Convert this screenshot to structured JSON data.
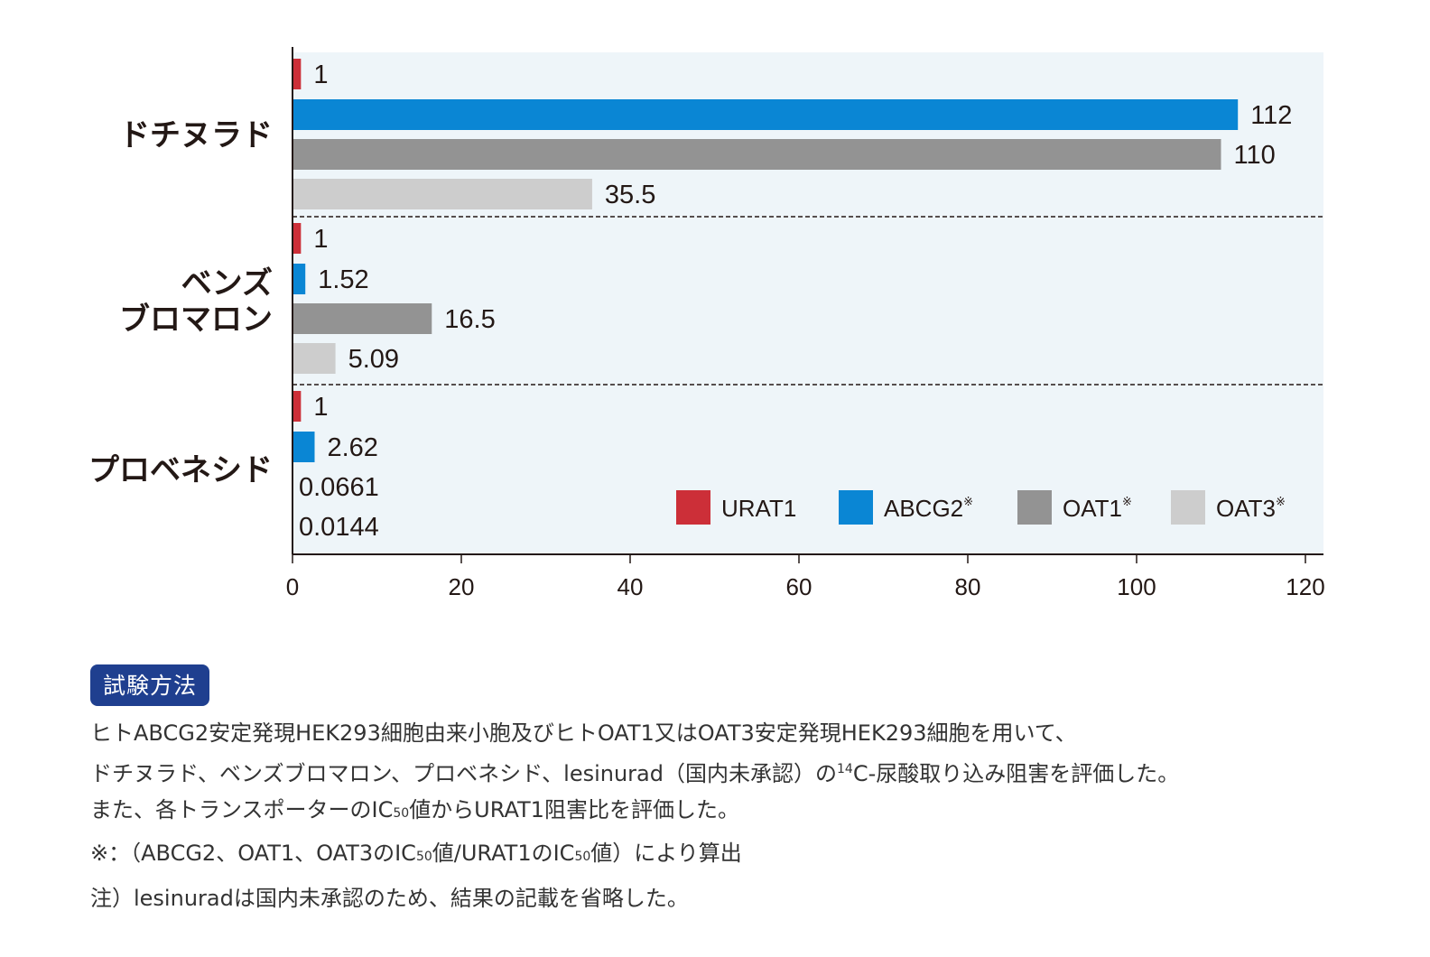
{
  "chart_data": {
    "type": "bar",
    "orientation": "horizontal",
    "groups": [
      {
        "label_lines": [
          "ドチヌラド"
        ],
        "values": [
          1,
          112,
          110,
          35.5
        ],
        "value_labels": [
          "1",
          "112",
          "110",
          "35.5"
        ]
      },
      {
        "label_lines": [
          "ベンズ",
          "ブロマロン"
        ],
        "values": [
          1,
          1.52,
          16.5,
          5.09
        ],
        "value_labels": [
          "1",
          "1.52",
          "16.5",
          "5.09"
        ]
      },
      {
        "label_lines": [
          "プロベネシド"
        ],
        "values": [
          1,
          2.62,
          0.0661,
          0.0144
        ],
        "value_labels": [
          "1",
          "2.62",
          "0.0661",
          "0.0144"
        ]
      }
    ],
    "series": [
      {
        "name": "URAT1",
        "marker": "",
        "color": "#cc2f38"
      },
      {
        "name": "ABCG2",
        "marker": "※",
        "color": "#0a86d4"
      },
      {
        "name": "OAT1",
        "marker": "※",
        "color": "#939393"
      },
      {
        "name": "OAT3",
        "marker": "※",
        "color": "#cdcdcd"
      }
    ],
    "xlim": [
      0,
      120
    ],
    "xticks": [
      0,
      20,
      40,
      60,
      80,
      100,
      120
    ],
    "xlabel": "",
    "ylabel": "",
    "background": "#eef5f9",
    "legend_position": "lower-right",
    "grid": false,
    "group_separators": "dashed"
  },
  "method": {
    "badge": "試験方法",
    "line1": "ヒトABCG2安定発現HEK293細胞由来小胞及びヒトOAT1又はOAT3安定発現HEK293細胞を用いて、",
    "line2_a": "ドチヌラド、ベンズブロマロン、プロベネシド、lesinurad（国内未承認）の",
    "line2_sup": "14",
    "line2_b": "C-尿酸取り込み阻害を評価した。",
    "line3_a": "また、各トランスポーターのIC",
    "line3_sub": "50",
    "line3_b": "値からURAT1阻害比を評価した。"
  },
  "notes": {
    "n1_a": "※：（ABCG2、OAT1、OAT3のIC",
    "n1_sub1": "50",
    "n1_b": "値/URAT1のIC",
    "n1_sub2": "50",
    "n1_c": "値）により算出",
    "n2": "注）lesinuradは国内未承認のため、結果の記載を省略した。"
  }
}
